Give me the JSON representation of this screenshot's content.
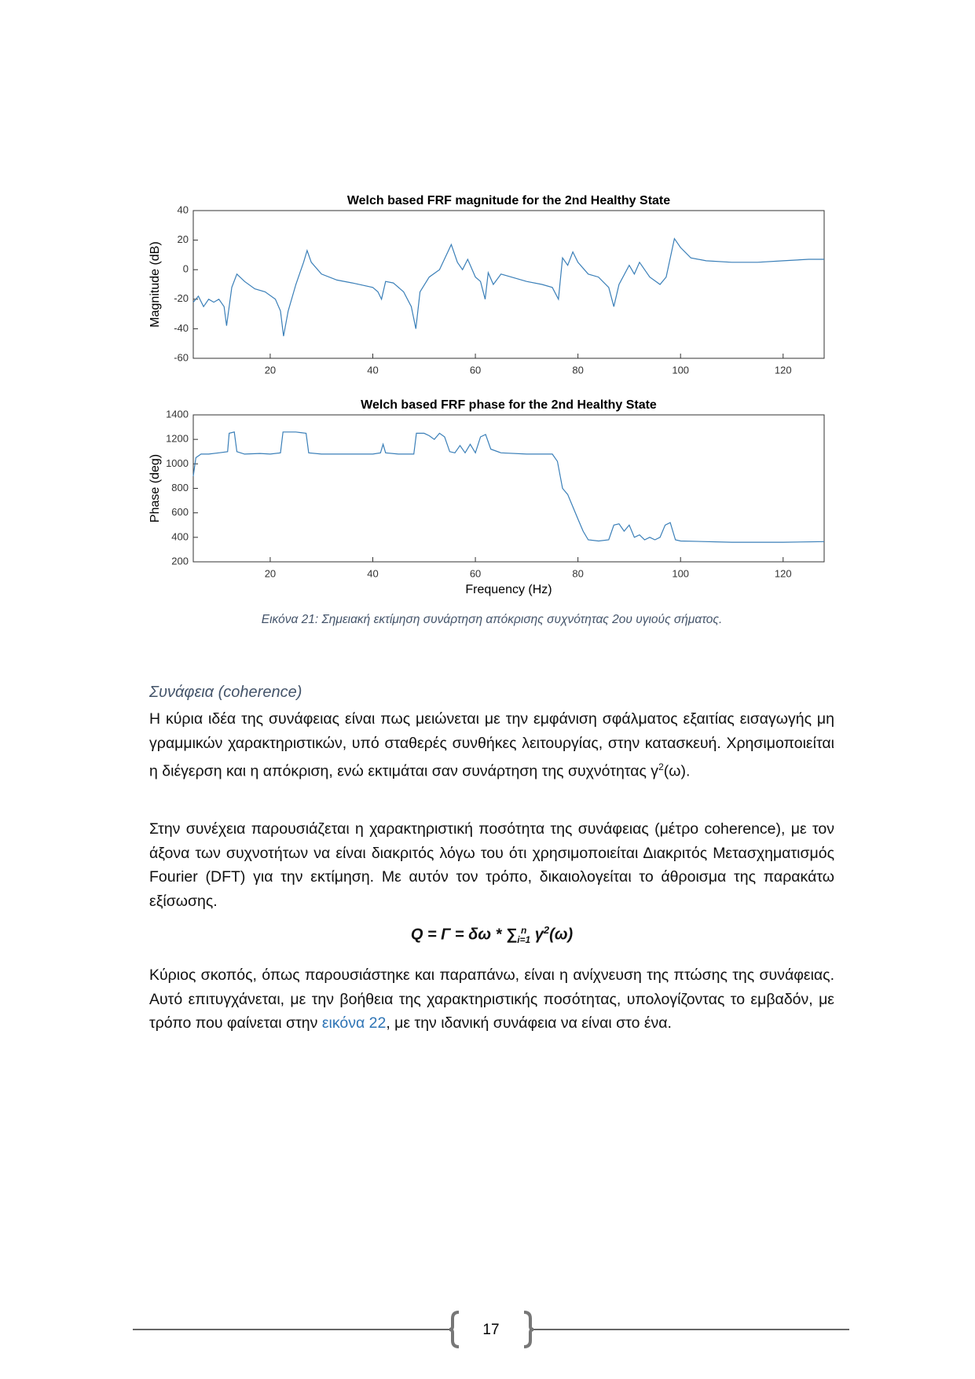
{
  "chart_data": [
    {
      "type": "line",
      "title": "Welch based FRF magnitude for the 2nd Healthy State",
      "y_label": "Magnitude (dB)",
      "color": "#3a7fb8",
      "x": [
        5,
        6,
        7,
        8,
        9,
        10,
        11,
        11.5,
        12.5,
        13.5,
        15,
        17,
        19,
        21,
        22,
        22.6,
        23.5,
        25,
        26.5,
        27.2,
        28,
        30,
        33,
        36,
        40,
        41,
        41.7,
        42.5,
        44,
        46,
        47.5,
        48.4,
        49.2,
        51,
        53,
        55.3,
        56.5,
        57.5,
        58.5,
        60,
        61,
        61.9,
        62.5,
        63.5,
        65,
        67,
        70,
        73,
        75,
        76.2,
        77,
        78,
        79,
        80,
        82,
        84,
        86,
        87,
        88,
        90,
        91,
        92,
        94,
        96,
        97.2,
        98.8,
        100,
        102,
        105,
        110,
        115,
        120,
        125,
        128
      ],
      "values": [
        -22,
        -18,
        -25,
        -20,
        -22,
        -20,
        -25,
        -38,
        -12,
        -3,
        -8,
        -13,
        -15,
        -20,
        -28,
        -45,
        -28,
        -10,
        5,
        13,
        5,
        -3,
        -7,
        -9,
        -12,
        -15,
        -20,
        -8,
        -9,
        -15,
        -25,
        -40,
        -15,
        -5,
        0,
        17,
        5,
        0,
        7,
        -5,
        -8,
        -20,
        -2,
        -10,
        -3,
        -5,
        -8,
        -10,
        -12,
        -20,
        8,
        3,
        12,
        5,
        -3,
        -5,
        -12,
        -25,
        -10,
        3,
        -3,
        5,
        -5,
        -10,
        -5,
        21,
        15,
        8,
        6,
        5,
        5,
        6,
        7,
        7
      ],
      "xlim": [
        5,
        128
      ],
      "ylim": [
        -60,
        40
      ],
      "xticks": [
        20,
        40,
        60,
        80,
        100,
        120
      ],
      "yticks": [
        -60,
        -40,
        -20,
        0,
        20,
        40
      ]
    },
    {
      "type": "line",
      "title": "Welch based FRF phase for the 2nd Healthy State",
      "y_label": "Phase (deg)",
      "x_label": "Frequency (Hz)",
      "color": "#3a7fb8",
      "x": [
        5,
        5.5,
        6.5,
        8,
        10,
        11.7,
        12,
        13,
        13.5,
        15,
        18,
        20,
        22,
        22.5,
        25,
        27,
        27.5,
        30,
        35,
        40,
        41.5,
        42,
        42.5,
        45,
        48,
        48.5,
        50,
        51,
        52,
        53,
        54,
        55,
        56,
        57,
        58,
        59,
        60,
        61,
        62,
        63,
        65,
        70,
        75,
        76,
        77,
        78,
        79,
        80,
        81,
        82,
        84,
        86,
        87,
        88,
        89,
        90,
        91,
        92,
        93,
        94,
        95,
        96,
        97,
        98,
        99,
        100,
        110,
        120,
        128
      ],
      "values": [
        900,
        1050,
        1080,
        1080,
        1090,
        1100,
        1250,
        1260,
        1100,
        1080,
        1085,
        1080,
        1090,
        1260,
        1260,
        1250,
        1090,
        1080,
        1080,
        1080,
        1090,
        1160,
        1090,
        1080,
        1080,
        1250,
        1250,
        1230,
        1200,
        1250,
        1220,
        1100,
        1090,
        1150,
        1090,
        1160,
        1090,
        1220,
        1240,
        1120,
        1090,
        1080,
        1080,
        1020,
        800,
        750,
        650,
        550,
        450,
        380,
        370,
        380,
        500,
        510,
        450,
        500,
        400,
        420,
        380,
        400,
        380,
        400,
        500,
        520,
        380,
        370,
        360,
        360,
        365
      ],
      "xlim": [
        5,
        128
      ],
      "ylim": [
        200,
        1400
      ],
      "xticks": [
        20,
        40,
        60,
        80,
        100,
        120
      ],
      "yticks": [
        200,
        400,
        600,
        800,
        1000,
        1200,
        1400
      ]
    }
  ],
  "caption": "Εικόνα 21: Σημειακή εκτίμηση συνάρτηση απόκρισης συχνότητας 2ου  υγιούς σήματος.",
  "heading": "Συνάφεια (coherence)",
  "paragraphs": [
    [
      "Η κύρια ιδέα της συνάφειας είναι πως μειώνεται με την εμφάνιση σφάλματος εξαιτίας εισαγωγής μη γραμμικών χαρακτηριστικών, υπό σταθερές συνθήκες λειτουργίας, στην κατασκευή. Χρησιμοποιείται η διέγερση και η απόκριση, ενώ εκτιμάται σαν συνάρτηση της συχνότητας γ",
      "2",
      "(ω)."
    ],
    [
      "Στην συνέχεια παρουσιάζεται η χαρακτηριστική ποσότητα της συνάφειας (μέτρο coherence), με τον άξονα των συχνοτήτων να είναι διακριτός λόγω του ότι χρησιμοποιείται Διακριτός Μετασχηματισμός Fourier (DFT) για την εκτίμηση. Με αυτόν τον τρόπο, δικαιολογείται το άθροισμα της παρακάτω εξίσωσης."
    ],
    [
      "Κύριος σκοπός, όπως παρουσιάστηκε και παραπάνω, είναι η ανίχνευση της πτώσης της συνάφειας. Αυτό επιτυγχάνεται, με την βοήθεια της χαρακτηριστικής ποσότητας, υπολογίζοντας το εμβαδόν, με τρόπο που φαίνεται στην ",
      "εικόνα 22",
      ", με την ιδανική συνάφεια να είναι στο ένα."
    ]
  ],
  "equation": [
    "Q = Γ = δω * ∑",
    "n",
    "i=1",
    " γ",
    "2",
    "(ω)"
  ],
  "page_number": "17"
}
